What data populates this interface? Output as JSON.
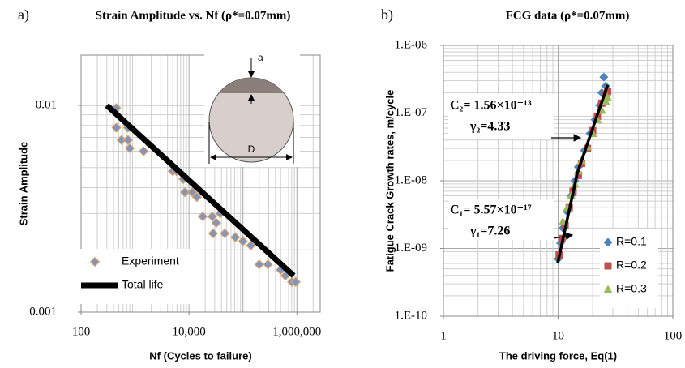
{
  "chart_data": [
    {
      "type": "scatter",
      "panel_label": "a)",
      "title": "Strain Amplitude vs. Nf (ρ*=0.07mm)",
      "x_label": "Nf (Cycles to failure)",
      "y_label": "Strain Amplitude",
      "log_x": true,
      "log_y": true,
      "grid": true,
      "legend_position": "lower left",
      "xlim": [
        100,
        2700000
      ],
      "ylim": [
        0.001,
        0.0175
      ],
      "xticks": [
        100,
        {
          "value": 10000,
          "label": "10,000"
        },
        {
          "value": 1000000,
          "label": "1,000,000"
        }
      ],
      "yticks": [
        0.001,
        0.01
      ],
      "annotations": [
        "a",
        "D"
      ],
      "series": [
        {
          "name": "Experiment",
          "type": "scatter",
          "marker": "diamond",
          "color": "#8496b8",
          "x": [
            450,
            450,
            740,
            560,
            740,
            800,
            1440,
            5000,
            5900,
            7850,
            8400,
            11500,
            14000,
            18000,
            27000,
            38000,
            32000,
            28000,
            46000,
            72000,
            100000,
            140000,
            200000,
            290000,
            500000,
            610000,
            810000,
            950000
          ],
          "values": [
            0.0097,
            0.0078,
            0.0078,
            0.0068,
            0.0068,
            0.0062,
            0.006,
            0.0048,
            0.0048,
            0.0044,
            0.0038,
            0.0038,
            0.0036,
            0.0029,
            0.0029,
            0.003,
            0.0027,
            0.0024,
            0.0024,
            0.0023,
            0.0022,
            0.0021,
            0.0017,
            0.0017,
            0.0016,
            0.0015,
            0.0014,
            0.0014
          ]
        },
        {
          "name": "Total life",
          "type": "line",
          "color": "#000000",
          "x": [
            300,
            12700,
            870000
          ],
          "values": [
            0.01,
            0.0041,
            0.0015
          ]
        }
      ]
    },
    {
      "type": "scatter",
      "panel_label": "b)",
      "title": "FCG data (ρ*=0.07mm)",
      "x_label": "The driving force, Eq(1)",
      "y_label": "Fatigue Crack Growth rates, m/cycle",
      "log_x": true,
      "log_y": true,
      "grid": true,
      "legend_position": "lower right",
      "xlim": [
        1,
        100
      ],
      "ylim": [
        1e-10,
        1e-06
      ],
      "xticks": [
        1,
        10,
        100
      ],
      "yticks": [
        {
          "value": 1e-10,
          "label": "1.E-10"
        },
        {
          "value": 1e-09,
          "label": "1.E-09"
        },
        {
          "value": 1e-08,
          "label": "1.E-08"
        },
        {
          "value": 1e-07,
          "label": "1.E-07"
        },
        {
          "value": 1e-06,
          "label": "1.E-06"
        }
      ],
      "annotations": [
        "C₂= 1.56×10⁻¹³",
        "γ₂=4.33",
        "C₁= 5.57×10⁻¹⁷",
        "γ₁=7.26"
      ],
      "series": [
        {
          "name": "R=0.1",
          "type": "scatter",
          "marker": "diamond",
          "color": "#4f81bd",
          "x": [
            10,
            10.5,
            11,
            12,
            13,
            14,
            15,
            17,
            19,
            21,
            23,
            24,
            25,
            26
          ],
          "values": [
            7e-10,
            1.2e-09,
            2e-09,
            3.5e-09,
            6e-09,
            1e-08,
            1.6e-08,
            2.8e-08,
            5e-08,
            8e-08,
            1.3e-07,
            2e-07,
            3.4e-07,
            2.5e-07
          ]
        },
        {
          "name": "R=0.2",
          "type": "scatter",
          "marker": "square",
          "color": "#c0504d",
          "x": [
            10.2,
            10.8,
            11.5,
            12.5,
            13.5,
            15,
            16,
            18,
            20,
            22,
            24,
            26,
            27
          ],
          "values": [
            8e-10,
            1.4e-09,
            2.2e-09,
            4e-09,
            7e-09,
            1.2e-08,
            1.8e-08,
            3e-08,
            5.5e-08,
            9e-08,
            1.4e-07,
            1.8e-07,
            2.1e-07
          ]
        },
        {
          "name": "R=0.3",
          "type": "scatter",
          "marker": "triangle",
          "color": "#9bbb59",
          "x": [
            11,
            12,
            13,
            14,
            15,
            16,
            18,
            20,
            22,
            24,
            26,
            27
          ],
          "values": [
            2.5e-09,
            4e-09,
            6e-09,
            9e-09,
            1.4e-08,
            2e-08,
            3.2e-08,
            5e-08,
            8e-08,
            1.1e-07,
            1.5e-07,
            1.7e-07
          ]
        }
      ],
      "fit_line": {
        "color": "#000000",
        "x": [
          9.9,
          14.7,
          27
        ],
        "y": [
          6e-10,
          1.3e-08,
          2.6e-07
        ]
      }
    }
  ]
}
